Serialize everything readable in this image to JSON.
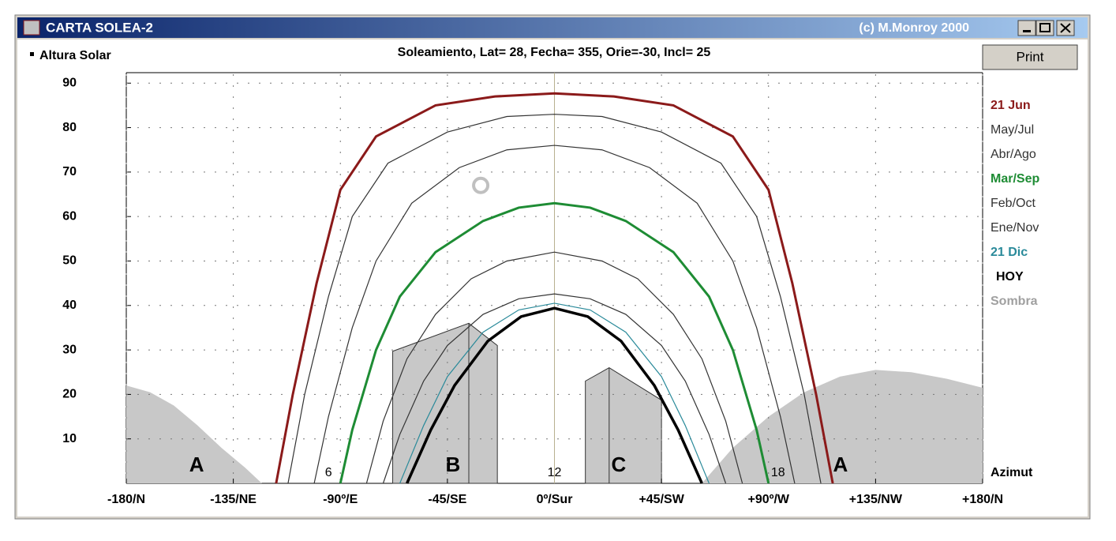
{
  "window": {
    "title": "CARTA SOLEA-2",
    "copyright": "(c) M.Monroy 2000",
    "button": "Print"
  },
  "chart_data": {
    "type": "line",
    "title": "Soleamiento, Lat= 28, Fecha= 355, Orie=-30, Incl= 25",
    "y_label": "Altura Solar",
    "x_label": "Azimut",
    "xlim": [
      -180,
      180
    ],
    "ylim": [
      0,
      92
    ],
    "xticks": [
      {
        "value": -180,
        "label": "-180/N"
      },
      {
        "value": -135,
        "label": "-135/NE"
      },
      {
        "value": -90,
        "label": "-90º/E"
      },
      {
        "value": -45,
        "label": "-45/SE"
      },
      {
        "value": 0,
        "label": "0º/Sur"
      },
      {
        "value": 45,
        "label": "+45/SW"
      },
      {
        "value": 90,
        "label": "+90º/W"
      },
      {
        "value": 135,
        "label": "+135/NW"
      },
      {
        "value": 180,
        "label": "+180/N"
      }
    ],
    "yticks": [
      10,
      20,
      30,
      40,
      50,
      60,
      70,
      80,
      90
    ],
    "grid": true,
    "series": [
      {
        "name": "21 Jun",
        "color": "#8b1a1a",
        "width": 3,
        "x": [
          -117,
          -110,
          -100,
          -90,
          -75,
          -50,
          -25,
          0,
          25,
          50,
          75,
          90,
          100,
          110,
          117
        ],
        "values": [
          0,
          20,
          45,
          66,
          78,
          85,
          87,
          87.7,
          87,
          85,
          78,
          66,
          45,
          20,
          0
        ]
      },
      {
        "name": "May/Jul",
        "color": "#333333",
        "width": 1.2,
        "x": [
          -112,
          -105,
          -95,
          -85,
          -70,
          -45,
          -20,
          0,
          20,
          45,
          70,
          85,
          95,
          105,
          112
        ],
        "values": [
          0,
          20,
          42,
          60,
          72,
          79,
          82.5,
          83,
          82.5,
          79,
          72,
          60,
          42,
          20,
          0
        ]
      },
      {
        "name": "Abr/Ago",
        "color": "#333333",
        "width": 1.2,
        "x": [
          -101,
          -95,
          -85,
          -75,
          -60,
          -40,
          -20,
          0,
          20,
          40,
          60,
          75,
          85,
          95,
          101
        ],
        "values": [
          0,
          15,
          35,
          50,
          63,
          71,
          75,
          76,
          75,
          71,
          63,
          50,
          35,
          15,
          0
        ]
      },
      {
        "name": "Mar/Sep",
        "color": "#1e8c34",
        "width": 3,
        "x": [
          -90,
          -85,
          -75,
          -65,
          -50,
          -30,
          -15,
          0,
          15,
          30,
          50,
          65,
          75,
          85,
          90
        ],
        "values": [
          0,
          12,
          30,
          42,
          52,
          59,
          62,
          63,
          62,
          59,
          52,
          42,
          30,
          12,
          0
        ]
      },
      {
        "name": "Feb/Oct",
        "color": "#333333",
        "width": 1.2,
        "x": [
          -79,
          -72,
          -62,
          -50,
          -35,
          -20,
          0,
          20,
          35,
          50,
          62,
          72,
          79
        ],
        "values": [
          0,
          14,
          28,
          38,
          46,
          50,
          52,
          50,
          46,
          38,
          28,
          14,
          0
        ]
      },
      {
        "name": "Ene/Nov",
        "color": "#333333",
        "width": 1.2,
        "x": [
          -72,
          -65,
          -55,
          -45,
          -30,
          -15,
          0,
          15,
          30,
          45,
          55,
          65,
          72
        ],
        "values": [
          0,
          11,
          23,
          31,
          38,
          41.5,
          42.6,
          41.5,
          38,
          31,
          23,
          11,
          0
        ]
      },
      {
        "name": "21 Dic",
        "color": "#2a8a9a",
        "width": 1.2,
        "x": [
          -65,
          -55,
          -45,
          -30,
          -15,
          0,
          15,
          30,
          45,
          55,
          65
        ],
        "values": [
          0,
          13,
          24,
          34,
          39,
          40.5,
          39,
          34,
          24,
          13,
          0
        ]
      },
      {
        "name": "HOY",
        "color": "#000000",
        "width": 3.5,
        "x": [
          -62,
          -52,
          -42,
          -28,
          -14,
          0,
          14,
          28,
          42,
          52,
          62
        ],
        "values": [
          0,
          12,
          22,
          32,
          37.5,
          39.4,
          37.5,
          32,
          22,
          12,
          0
        ]
      }
    ],
    "shade": {
      "name": "Sombra",
      "color": "#c8c8c8"
    },
    "obstacles": [
      {
        "name": "A",
        "x": [
          -180,
          -170,
          -160,
          -150,
          -140,
          -130,
          -123
        ],
        "values": [
          22,
          20.5,
          17.5,
          13,
          8,
          3.5,
          0
        ]
      },
      {
        "name": "B",
        "x": [
          -68,
          -36,
          -24
        ],
        "values": [
          29.7,
          36,
          31
        ]
      },
      {
        "name": "C",
        "x": [
          13,
          23,
          45
        ],
        "values": [
          23,
          26,
          18.7
        ]
      },
      {
        "name": "A",
        "x": [
          62,
          75,
          90,
          105,
          120,
          135,
          150,
          165,
          180
        ],
        "values": [
          0,
          8,
          15,
          20.5,
          24,
          25.5,
          25,
          23.5,
          21.5
        ]
      }
    ],
    "hour_labels": [
      {
        "text": "6",
        "x": -95
      },
      {
        "text": "12",
        "x": 0
      },
      {
        "text": "18",
        "x": 94
      }
    ],
    "sun_marker": {
      "x": -31,
      "y": 67
    }
  }
}
